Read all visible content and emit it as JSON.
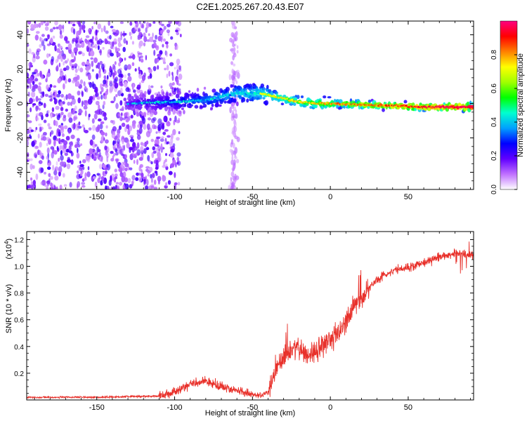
{
  "title": "C2E1.2025.267.20.43.E07",
  "chart_data": [
    {
      "type": "heatmap",
      "xlabel": "Height of straight line (km)",
      "ylabel": "Frequency (Hz)",
      "xlim": [
        -195,
        92
      ],
      "ylim": [
        -50,
        48
      ],
      "xticks": [
        -150,
        -100,
        -50,
        0,
        50
      ],
      "xtick_labels": [
        "-150",
        "-100",
        "-50",
        "0",
        "50"
      ],
      "yticks": [
        -40,
        -20,
        0,
        20,
        40
      ],
      "ytick_labels": [
        "-40",
        "-20",
        "0",
        "20",
        "40"
      ],
      "colorbar": {
        "label": "Normalized spectral amplitude",
        "range": [
          0,
          1
        ],
        "ticks": [
          0.0,
          0.2,
          0.4,
          0.6,
          0.8
        ],
        "tick_labels": [
          "0.0",
          "0.2",
          "0.4",
          "0.6",
          "0.8"
        ],
        "colors": [
          "#ffffff",
          "#c070ff",
          "#6000ff",
          "#0000ff",
          "#00a0ff",
          "#00ffd0",
          "#00ff00",
          "#a0ff00",
          "#ffff00",
          "#ff8000",
          "#ff0000",
          "#ff0080"
        ]
      },
      "ridge_center_hz": [
        {
          "x": -130,
          "y": 0
        },
        {
          "x": -100,
          "y": 1
        },
        {
          "x": -80,
          "y": 2
        },
        {
          "x": -60,
          "y": 6
        },
        {
          "x": -45,
          "y": 6
        },
        {
          "x": -30,
          "y": 3
        },
        {
          "x": -20,
          "y": 1
        },
        {
          "x": -10,
          "y": 0
        },
        {
          "x": 0,
          "y": 0
        },
        {
          "x": 30,
          "y": -1
        },
        {
          "x": 60,
          "y": -2
        },
        {
          "x": 90,
          "y": -2
        }
      ]
    },
    {
      "type": "line",
      "xlabel": "Height of straight line (km)",
      "ylabel": "SNR (10 * v/v)",
      "scale_label": "(x10",
      "scale_exp": "4",
      "scale_close": ")",
      "xlim": [
        -195,
        92
      ],
      "ylim": [
        0,
        1.26
      ],
      "xticks": [
        -150,
        -100,
        -50,
        0,
        50
      ],
      "xtick_labels": [
        "-150",
        "-100",
        "-50",
        "0",
        "50"
      ],
      "yticks": [
        0.2,
        0.4,
        0.6,
        0.8,
        1.0,
        1.2
      ],
      "ytick_labels": [
        "0.2",
        "0.4",
        "0.6",
        "0.8",
        "1.0",
        "1.2"
      ],
      "color": "#e8302a",
      "series": [
        {
          "name": "SNR",
          "x": [
            -195,
            -150,
            -110,
            -100,
            -90,
            -80,
            -70,
            -60,
            -50,
            -45,
            -40,
            -35,
            -30,
            -25,
            -20,
            -15,
            -10,
            -5,
            0,
            5,
            10,
            15,
            20,
            25,
            30,
            40,
            50,
            60,
            70,
            80,
            85,
            90,
            92
          ],
          "y": [
            0.02,
            0.02,
            0.03,
            0.06,
            0.12,
            0.14,
            0.1,
            0.07,
            0.04,
            0.03,
            0.06,
            0.22,
            0.3,
            0.38,
            0.4,
            0.33,
            0.36,
            0.42,
            0.44,
            0.5,
            0.58,
            0.7,
            0.76,
            0.84,
            0.9,
            0.97,
            0.99,
            1.03,
            1.07,
            1.1,
            1.1,
            1.08,
            1.09
          ]
        }
      ]
    }
  ]
}
